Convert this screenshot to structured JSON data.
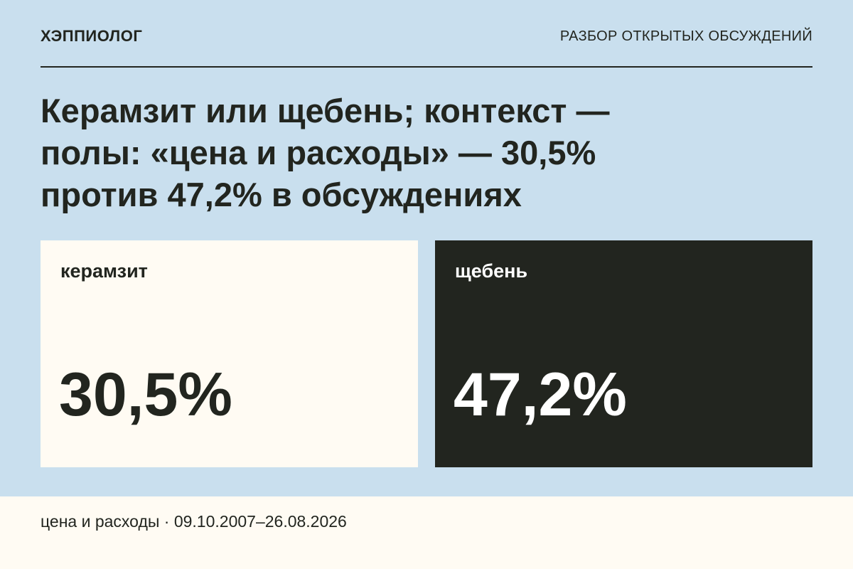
{
  "header": {
    "brand": "ХЭППИОЛОГ",
    "section": "РАЗБОР ОТКРЫТЫХ ОБСУЖДЕНИЙ"
  },
  "title_lines": [
    "Керамзит или щебень; контекст —",
    "полы: «цена и расходы» — 30,5%",
    "против 47,2% в обсуждениях"
  ],
  "cards": [
    {
      "label": "керамзит",
      "value": "30,5%"
    },
    {
      "label": "щебень",
      "value": "47,2%"
    }
  ],
  "footer": "цена и расходы · 09.10.2007–26.08.2026"
}
